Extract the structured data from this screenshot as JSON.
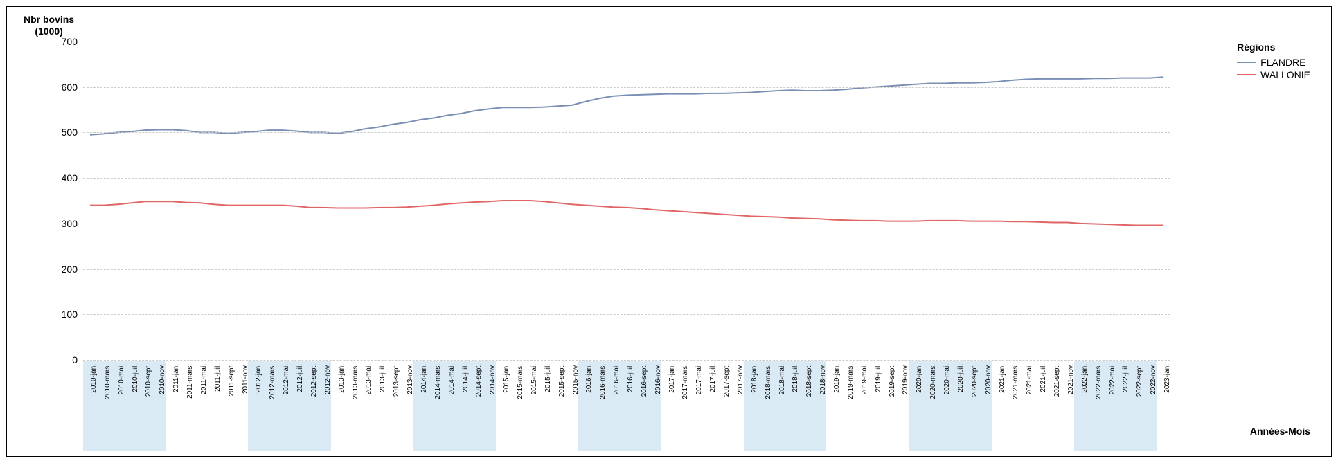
{
  "chart": {
    "type": "line",
    "y_axis_title_line1": "Nbr bovins",
    "y_axis_title_line2": "(1000)",
    "x_axis_title": "Années-Mois",
    "legend_title": "Régions",
    "background_color": "#ffffff",
    "border_color": "#000000",
    "grid_color": "#cccccc",
    "band_color": "#d9eaf5",
    "line_width": 2,
    "title_fontsize": 14,
    "tick_fontsize_y": 14,
    "tick_fontsize_x": 10,
    "ylim": [
      0,
      700
    ],
    "ytick_step": 100,
    "yticks": [
      0,
      100,
      200,
      300,
      400,
      500,
      600,
      700
    ],
    "categories": [
      "2010-jan.",
      "2010-mars.",
      "2010-mai.",
      "2010-juil.",
      "2010-sept.",
      "2010-nov.",
      "2011-jan.",
      "2011-mars.",
      "2011-mai.",
      "2011-juil.",
      "2011-sept.",
      "2011-nov.",
      "2012-jan.",
      "2012-mars.",
      "2012-mai.",
      "2012-juil.",
      "2012-sept.",
      "2012-nov.",
      "2013-jan.",
      "2013-mars.",
      "2013-mai.",
      "2013-juil.",
      "2013-sept.",
      "2013-nov.",
      "2014-jan.",
      "2014-mars.",
      "2014-mai.",
      "2014-juil.",
      "2014-sept.",
      "2014-nov.",
      "2015-jan.",
      "2015-mars.",
      "2015-mai.",
      "2015-juil.",
      "2015-sept.",
      "2015-nov.",
      "2016-jan.",
      "2016-mars.",
      "2016-mai.",
      "2016-juil.",
      "2016-sept.",
      "2016-nov.",
      "2017-jan.",
      "2017-mars.",
      "2017-mai.",
      "2017-juil.",
      "2017-sept.",
      "2017-nov.",
      "2018-jan.",
      "2018-mars.",
      "2018-mai.",
      "2018-juil.",
      "2018-sept.",
      "2018-nov.",
      "2019-jan.",
      "2019-mars.",
      "2019-mai.",
      "2019-juil.",
      "2019-sept.",
      "2019-nov.",
      "2020-jan.",
      "2020-mars.",
      "2020-mai.",
      "2020-juil.",
      "2020-sept.",
      "2020-nov.",
      "2021-jan.",
      "2021-mars.",
      "2021-mai.",
      "2021-juil.",
      "2021-sept.",
      "2021-nov.",
      "2022-jan.",
      "2022-mars.",
      "2022-mai.",
      "2022-juil.",
      "2022-sept.",
      "2022-nov.",
      "2023-jan."
    ],
    "series": [
      {
        "name": "FLANDRE",
        "color": "#7b8fb5",
        "values": [
          495,
          497,
          500,
          502,
          505,
          506,
          506,
          504,
          500,
          500,
          498,
          500,
          502,
          505,
          505,
          503,
          500,
          500,
          498,
          502,
          508,
          512,
          518,
          522,
          528,
          532,
          538,
          542,
          548,
          552,
          555,
          555,
          555,
          556,
          558,
          560,
          568,
          575,
          580,
          582,
          583,
          584,
          585,
          585,
          585,
          586,
          586,
          587,
          588,
          590,
          592,
          593,
          592,
          592,
          593,
          595,
          598,
          600,
          602,
          604,
          606,
          608,
          608,
          609,
          609,
          610,
          612,
          615,
          617,
          618,
          618,
          618,
          618,
          619,
          619,
          620,
          620,
          620,
          622
        ]
      },
      {
        "name": "WALLONIE",
        "color": "#e06666",
        "values": [
          340,
          340,
          342,
          345,
          348,
          348,
          348,
          346,
          345,
          342,
          340,
          340,
          340,
          340,
          340,
          338,
          335,
          335,
          334,
          334,
          334,
          335,
          335,
          336,
          338,
          340,
          343,
          345,
          347,
          348,
          350,
          350,
          350,
          348,
          345,
          342,
          340,
          338,
          336,
          335,
          333,
          330,
          328,
          326,
          324,
          322,
          320,
          318,
          316,
          315,
          314,
          312,
          311,
          310,
          308,
          307,
          306,
          306,
          305,
          305,
          305,
          306,
          306,
          306,
          305,
          305,
          305,
          304,
          304,
          303,
          302,
          302,
          300,
          299,
          298,
          297,
          296,
          296,
          296
        ]
      }
    ],
    "band_years": [
      2010,
      2011,
      2012,
      2013,
      2014,
      2015,
      2016,
      2017,
      2018,
      2019,
      2020,
      2021,
      2022,
      2023
    ]
  }
}
